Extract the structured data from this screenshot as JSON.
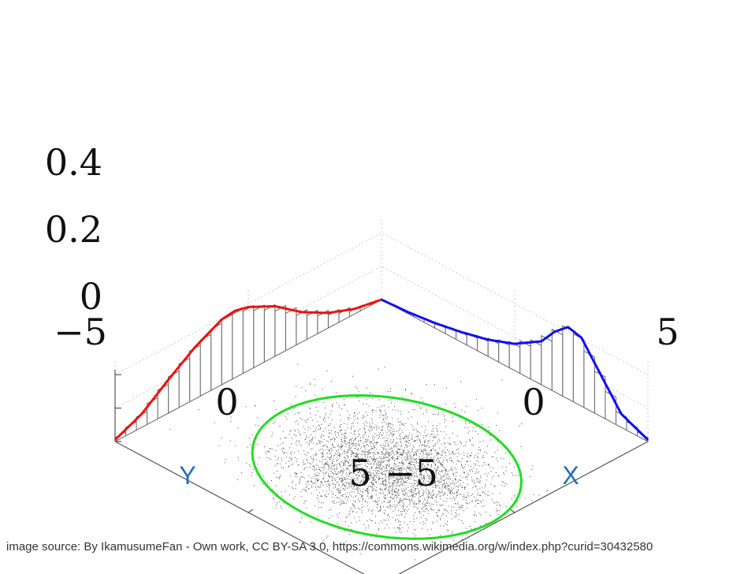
{
  "chart_data": {
    "type": "3d-scatter-with-marginals",
    "title": "",
    "x_axis": {
      "label": "X",
      "range": [
        -5,
        5
      ],
      "tick_values": [
        -5,
        0,
        5
      ],
      "tick_labels": [
        "−5",
        "0",
        "5"
      ]
    },
    "y_axis": {
      "label": "Y",
      "range": [
        -5,
        5
      ],
      "tick_values": [
        -5,
        0,
        5
      ],
      "tick_labels": [
        "−5",
        "0",
        "5"
      ]
    },
    "z_axis": {
      "label": "",
      "range": [
        0,
        0.4
      ],
      "tick_values": [
        0,
        0.2,
        0.4
      ],
      "tick_labels": [
        "0",
        "0.2",
        "0.4"
      ]
    },
    "grid": "dotted back panes",
    "scatter": {
      "description": "bivariate normal sample on the X–Y floor plane",
      "mean": [
        1.0,
        0.8
      ],
      "std": [
        1.6,
        1.3
      ],
      "point_color": "#222222"
    },
    "confidence_ellipse": {
      "center": [
        1.0,
        0.8
      ],
      "color": "#22dd22"
    },
    "x_marginal": {
      "color": "#1010ee",
      "x": [
        -5.0,
        -4.0,
        -3.0,
        -2.0,
        -1.0,
        0.0,
        1.0,
        1.5,
        2.0,
        2.5,
        3.0,
        4.0,
        5.0
      ],
      "density": [
        0.0,
        0.01,
        0.03,
        0.06,
        0.1,
        0.16,
        0.26,
        0.36,
        0.43,
        0.41,
        0.3,
        0.08,
        0.01
      ]
    },
    "y_marginal": {
      "color": "#ee1111",
      "y": [
        -5.0,
        -4.0,
        -3.0,
        -2.0,
        -1.0,
        0.0,
        0.5,
        1.0,
        2.0,
        3.0,
        4.0,
        5.0
      ],
      "density": [
        0.0,
        0.03,
        0.09,
        0.18,
        0.3,
        0.38,
        0.4,
        0.39,
        0.31,
        0.2,
        0.08,
        0.01
      ]
    }
  },
  "credit_text": "image source: By IkamusumeFan - Own work, CC BY-SA 3.0, https://commons.wikimedia.org/w/index.php?curid=30432580"
}
